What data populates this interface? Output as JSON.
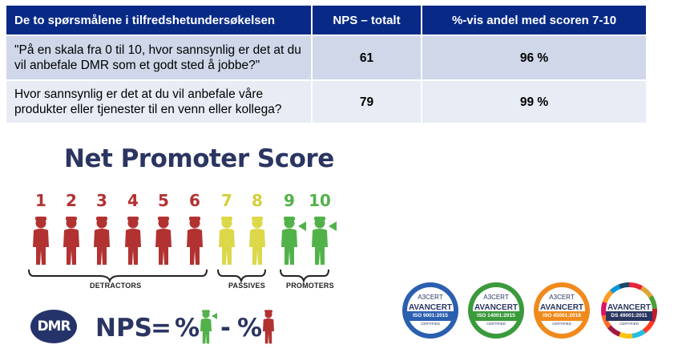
{
  "table": {
    "headers": [
      "De to spørsmålene i  tilfredshetundersøkelsen",
      "NPS – totalt",
      "%-vis andel med scoren 7-10"
    ],
    "rows": [
      {
        "question": "\"På en skala fra 0 til 10, hvor sannsynlig er det at du vil anbefale DMR som et godt sted å jobbe?\"",
        "nps": "61",
        "share": "96  %"
      },
      {
        "question": "Hvor sannsynlig er det at du vil anbefale våre produkter eller tjenester til en venn eller kollega?",
        "nps": "79",
        "share": "99  %"
      }
    ]
  },
  "graphic": {
    "title": "Net Promoter Score",
    "scores": [
      "1",
      "2",
      "3",
      "4",
      "5",
      "6",
      "7",
      "8",
      "9",
      "10"
    ],
    "groups": {
      "detractors": "DETRACTORS",
      "passives": "PASSIVES",
      "promoters": "PROMOTERS"
    },
    "colors": {
      "detractor": "#b23232",
      "passive": "#dcd84a",
      "promoter": "#52b24a",
      "title": "#2b3561"
    },
    "logo": "DMR",
    "formula": {
      "nps": "NPS",
      "equals": "=",
      "pct1": "%",
      "minus": "-",
      "pct2": "%"
    }
  },
  "certificates": [
    {
      "top": "A3CERT",
      "brand": "AVANCERT",
      "standard": "ISO 9001:2015",
      "sub": "CERTIFIED",
      "color": "#2b5fb0"
    },
    {
      "top": "A3CERT",
      "brand": "AVANCERT",
      "standard": "ISO 14001:2015",
      "sub": "CERTIFIED",
      "color": "#3b9a3c"
    },
    {
      "top": "A3CERT",
      "brand": "AVANCERT",
      "standard": "ISO 45001:2018",
      "sub": "CERTIFIED",
      "color": "#f08a1c"
    },
    {
      "top": "",
      "brand": "AVANCERT",
      "standard": "DS 49001:2011",
      "sub": "CERTIFIED",
      "color": "#ffffff"
    }
  ]
}
